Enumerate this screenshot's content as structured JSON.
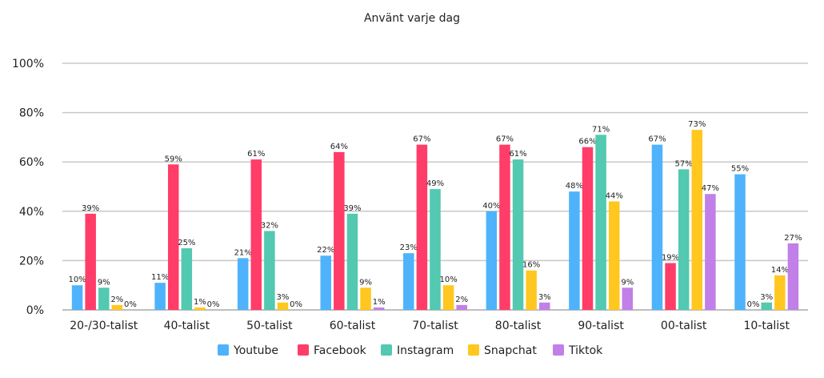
{
  "chart_data": {
    "type": "bar",
    "title": "Använt varje dag",
    "xlabel": "",
    "ylabel": "",
    "ylim": [
      0,
      100
    ],
    "yticks": [
      "0%",
      "20%",
      "40%",
      "60%",
      "80%",
      "100%"
    ],
    "grid": true,
    "legend_position": "bottom",
    "categories": [
      "20-/30-talist",
      "40-talist",
      "50-talist",
      "60-talist",
      "70-talist",
      "80-talist",
      "90-talist",
      "00-talist",
      "10-talist"
    ],
    "series": [
      {
        "name": "Youtube",
        "color": "#4fb3fb",
        "values": [
          10,
          11,
          21,
          22,
          23,
          40,
          48,
          67,
          55
        ]
      },
      {
        "name": "Facebook",
        "color": "#ff3d68",
        "values": [
          39,
          59,
          61,
          64,
          67,
          67,
          66,
          19,
          0
        ]
      },
      {
        "name": "Instagram",
        "color": "#52c9b0",
        "values": [
          9,
          25,
          32,
          39,
          49,
          61,
          71,
          57,
          3
        ]
      },
      {
        "name": "Snapchat",
        "color": "#ffc71f",
        "values": [
          2,
          1,
          3,
          9,
          10,
          16,
          44,
          73,
          14
        ]
      },
      {
        "name": "Tiktok",
        "color": "#c17fe8",
        "values": [
          0,
          0,
          0,
          1,
          2,
          3,
          9,
          47,
          27
        ]
      }
    ]
  }
}
